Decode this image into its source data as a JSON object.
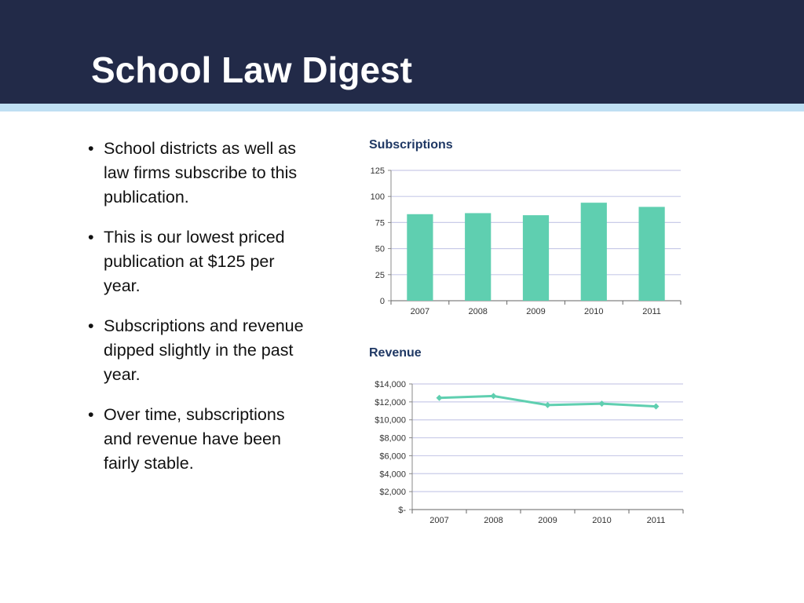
{
  "slide": {
    "title": "School Law Digest",
    "bullets": [
      "School districts as well as law firms subscribe to this publication.",
      "This is our lowest priced publication at $125 per year.",
      "Subscriptions and revenue dipped slightly in the past year.",
      "Over time, subscriptions and revenue have been fairly stable."
    ]
  },
  "colors": {
    "header_bg": "#222a48",
    "header_stripe": "#bfdff3",
    "series": "#5fcfb0",
    "grid": "#c9cbe8",
    "chart_title": "#1f3864"
  },
  "chart_data": [
    {
      "type": "bar",
      "title": "Subscriptions",
      "categories": [
        "2007",
        "2008",
        "2009",
        "2010",
        "2011"
      ],
      "values": [
        83,
        84,
        82,
        94,
        90
      ],
      "ylim": [
        0,
        125
      ],
      "yticks": [
        0,
        25,
        50,
        75,
        100,
        125
      ],
      "ytick_labels": [
        "0",
        "25",
        "50",
        "75",
        "100",
        "125"
      ],
      "grid": true,
      "legend": "none"
    },
    {
      "type": "line",
      "title": "Revenue",
      "categories": [
        "2007",
        "2008",
        "2009",
        "2010",
        "2011"
      ],
      "values": [
        12450,
        12650,
        11650,
        11800,
        11500
      ],
      "ylim": [
        0,
        14000
      ],
      "yticks": [
        0,
        2000,
        4000,
        6000,
        8000,
        10000,
        12000,
        14000
      ],
      "ytick_labels": [
        "$-",
        "$2,000",
        "$4,000",
        "$6,000",
        "$8,000",
        "$10,000",
        "$12,000",
        "$14,000"
      ],
      "marker": "diamond",
      "grid": true,
      "legend": "none"
    }
  ]
}
